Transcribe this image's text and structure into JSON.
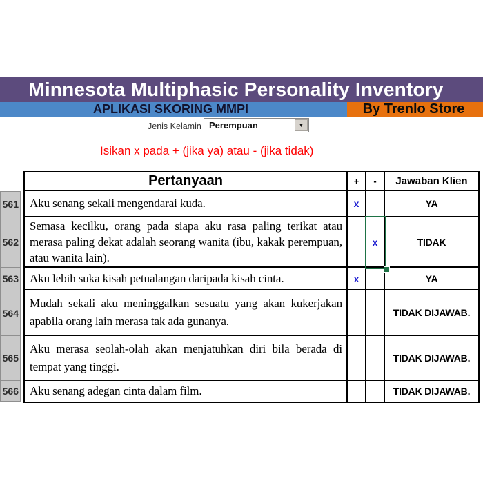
{
  "header": {
    "title": "Minnesota Multiphasic Personality Inventory",
    "subtitle": "APLIKASI SKORING MMPI",
    "store_badge": "By Trenlo Store"
  },
  "gender": {
    "label": "Jenis Kelamin",
    "value": "Perempuan",
    "dropdown_icon": "chevron-down-icon"
  },
  "instruction": "Isikan x pada + (jika ya) atau - (jika tidak)",
  "table": {
    "headers": {
      "question": "Pertanyaan",
      "plus": "+",
      "minus": "-",
      "answer": "Jawaban Klien"
    },
    "selected_cell": {
      "row": "562",
      "column": "-"
    },
    "rows": [
      {
        "number": "561",
        "lines": [
          "Aku senang sekali mengendarai kuda."
        ],
        "plus": "x",
        "minus": "",
        "answer": "YA"
      },
      {
        "number": "562",
        "lines": [
          "Semasa kecilku, orang pada siapa aku rasa paling terikat atau",
          "merasa paling dekat adalah seorang wanita (ibu, kakak perempuan,",
          "atau wanita lain)."
        ],
        "plus": "",
        "minus": "x",
        "answer": "TIDAK"
      },
      {
        "number": "563",
        "lines": [
          "Aku lebih suka kisah petualangan daripada kisah cinta."
        ],
        "plus": "x",
        "minus": "",
        "answer": "YA"
      },
      {
        "number": "564",
        "lines": [
          "Mudah sekali aku meninggalkan sesuatu yang akan kukerjakan",
          "apabila orang lain merasa tak ada gunanya."
        ],
        "plus": "",
        "minus": "",
        "answer": "TIDAK DIJAWAB."
      },
      {
        "number": "565",
        "lines": [
          "Aku merasa seolah-olah akan menjatuhkan diri bila berada di",
          "tempat yang tinggi."
        ],
        "plus": "",
        "minus": "",
        "answer": "TIDAK DIJAWAB."
      },
      {
        "number": "566",
        "lines": [
          "Aku senang adegan cinta dalam film."
        ],
        "plus": "",
        "minus": "",
        "answer": "TIDAK DIJAWAB."
      }
    ]
  },
  "colors": {
    "banner_purple": "#5C4B7D",
    "banner_blue": "#4C88C8",
    "banner_orange": "#E7710E",
    "instruction_red": "#FE0202",
    "mark_blue": "#1B1BD0",
    "selection_green": "#1E7245"
  }
}
